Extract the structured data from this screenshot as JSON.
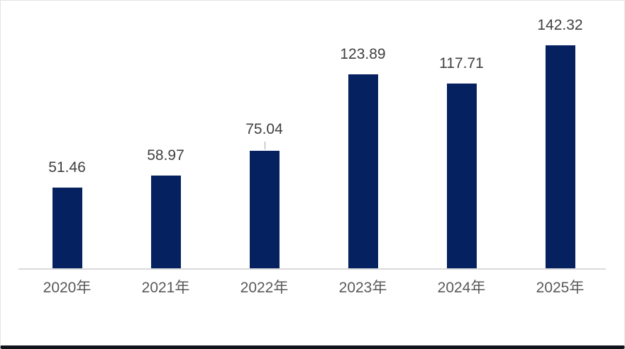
{
  "window": {
    "background_color": "#ffffff",
    "frame_border_color": "#e4e4e4",
    "bottom_edge_color": "#10131a"
  },
  "chart_data": {
    "type": "bar",
    "title": "",
    "xlabel": "",
    "ylabel": "",
    "categories": [
      "2020年",
      "2021年",
      "2022年",
      "2023年",
      "2024年",
      "2025年"
    ],
    "values": [
      51.46,
      58.97,
      75.04,
      123.89,
      117.71,
      142.32
    ],
    "data_labels": [
      "51.46",
      "58.97",
      "75.04",
      "123.89",
      "117.71",
      "142.32"
    ],
    "ylim": [
      0,
      160
    ],
    "grid": false,
    "legend": "none",
    "y_axis_visible": false,
    "x_axis_line_visible": true,
    "bar_color": "#062160",
    "data_label_color": "#404040",
    "category_label_color": "#595959",
    "axis_line_color": "#dadada",
    "leader_line_category_index": 2
  }
}
